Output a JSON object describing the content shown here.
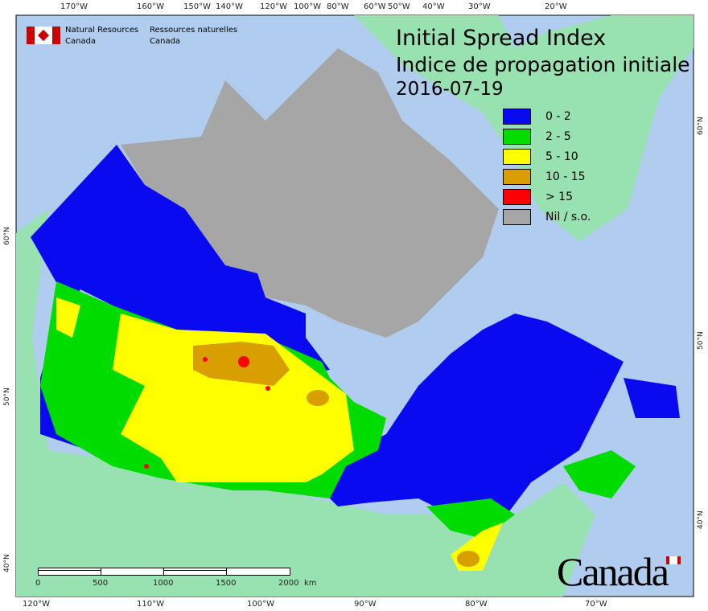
{
  "title": {
    "en": "Initial Spread Index",
    "fr": "Indice de propagation initiale",
    "date": "2016-07-19"
  },
  "agency": {
    "en_line1": "Natural Resources",
    "en_line2": "Canada",
    "fr_line1": "Ressources naturelles",
    "fr_line2": "Canada"
  },
  "wordmark": "Canada",
  "legend": [
    {
      "label": "0 - 2",
      "color": "#0a0af0"
    },
    {
      "label": "2 - 5",
      "color": "#00dc00"
    },
    {
      "label": "5 - 10",
      "color": "#ffff00"
    },
    {
      "label": "10 - 15",
      "color": "#d99e00"
    },
    {
      "label": "> 15",
      "color": "#ff0000"
    },
    {
      "label": "Nil / s.o.",
      "color": "#a6a6a6"
    }
  ],
  "top_axis": [
    "170°W",
    "160°W",
    "150°W",
    "140°W",
    "120°W",
    "100°W",
    "80°W",
    "60°W",
    "50°W",
    "40°W",
    "30°W",
    "20°W"
  ],
  "bottom_axis": [
    "120°W",
    "110°W",
    "100°W",
    "90°W",
    "80°W",
    "70°W"
  ],
  "left_axis": [
    "60°N",
    "50°N",
    "40°N"
  ],
  "right_axis": [
    "60°N",
    "50°N",
    "40°N"
  ],
  "scale_bar": {
    "labels": [
      "0",
      "500",
      "1000",
      "1500",
      "2000"
    ],
    "unit": "km"
  },
  "colors": {
    "ocean": "#b0cdef",
    "foreign_land": "#98e2b2"
  }
}
